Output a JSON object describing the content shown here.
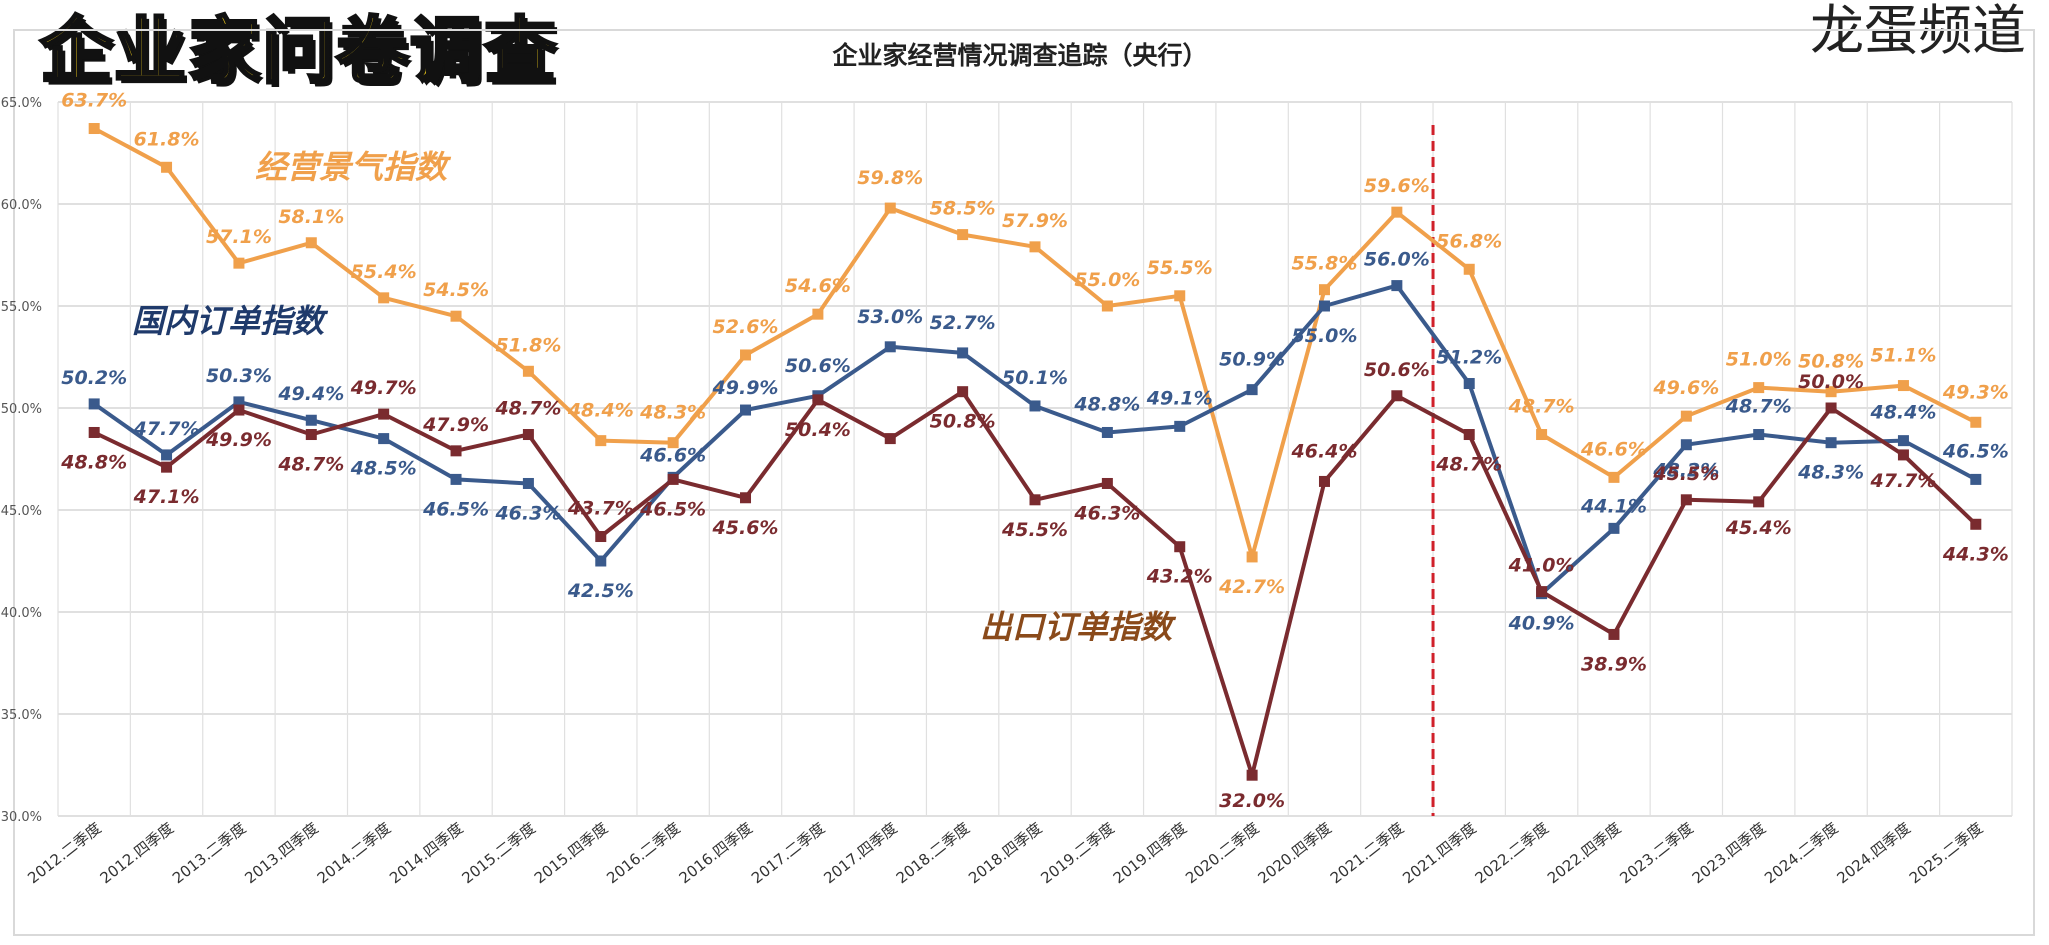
{
  "banner_title": "企业家问卷调查",
  "watermark_text": "龙蛋频道",
  "chart_data": {
    "type": "line",
    "title": "企业家经营情况调查追踪（央行）",
    "xlabel": "",
    "ylabel": "",
    "ylim": [
      30,
      65
    ],
    "yticks": [
      "30.0%",
      "35.0%",
      "40.0%",
      "45.0%",
      "50.0%",
      "55.0%",
      "60.0%",
      "65.0%"
    ],
    "grid": true,
    "categories": [
      "2012.二季度",
      "2012.四季度",
      "2013.二季度",
      "2013.四季度",
      "2014.二季度",
      "2014.四季度",
      "2015.二季度",
      "2015.四季度",
      "2016.二季度",
      "2016.四季度",
      "2017.二季度",
      "2017.四季度",
      "2018.二季度",
      "2018.四季度",
      "2019.二季度",
      "2019.四季度",
      "2020.二季度",
      "2020.四季度",
      "2021.二季度",
      "2021.四季度",
      "2022.二季度",
      "2022.四季度",
      "2023.二季度",
      "2023.四季度",
      "2024.二季度",
      "2024.四季度",
      "2025.二季度"
    ],
    "divider_after_category": "2021.二季度",
    "series": [
      {
        "name": "经营景气指数",
        "color": "#f0a04b",
        "values": [
          63.7,
          61.8,
          57.1,
          58.1,
          55.4,
          54.5,
          51.8,
          48.4,
          48.3,
          52.6,
          54.6,
          59.8,
          58.5,
          57.9,
          55.0,
          55.5,
          42.7,
          55.8,
          59.6,
          56.8,
          48.7,
          46.6,
          49.6,
          51.0,
          50.8,
          51.1,
          49.3
        ],
        "labels": [
          "63.7%",
          "61.8%",
          "57.1%",
          "58.1%",
          "55.4%",
          "54.5%",
          "51.8%",
          "48.4%",
          "48.3%",
          "52.6%",
          "54.6%",
          "59.8%",
          "58.5%",
          "57.9%",
          "55.0%",
          "55.5%",
          "42.7%",
          "55.8%",
          "59.6%",
          "56.8%",
          "48.7%",
          "46.6%",
          "49.6%",
          "51.0%",
          "50.8%",
          "51.1%",
          "49.3%"
        ]
      },
      {
        "name": "国内订单指数",
        "color": "#3a5a8c",
        "values": [
          50.2,
          47.7,
          50.3,
          49.4,
          48.5,
          46.5,
          46.3,
          42.5,
          46.6,
          49.9,
          50.6,
          53.0,
          52.7,
          50.1,
          48.8,
          49.1,
          50.9,
          55.0,
          56.0,
          51.2,
          40.9,
          44.1,
          48.2,
          48.7,
          48.3,
          48.4,
          46.5
        ],
        "labels": [
          "50.2%",
          "47.7%",
          "50.3%",
          "49.4%",
          "48.5%",
          "46.5%",
          "46.3%",
          "42.5%",
          "46.6%",
          "49.9%",
          "50.6%",
          "53.0%",
          "52.7%",
          "50.1%",
          "48.8%",
          "49.1%",
          "50.9%",
          "55.0%",
          "56.0%",
          "51.2%",
          "40.9%",
          "44.1%",
          "48.2%",
          "48.7%",
          "48.3%",
          "48.4%",
          "46.5%"
        ]
      },
      {
        "name": "出口订单指数",
        "color": "#7a2b2f",
        "values": [
          48.8,
          47.1,
          49.9,
          48.7,
          49.7,
          47.9,
          48.7,
          43.7,
          46.5,
          45.6,
          50.4,
          48.5,
          50.8,
          45.5,
          46.3,
          43.2,
          32.0,
          46.4,
          50.6,
          48.7,
          41.0,
          38.9,
          45.5,
          45.4,
          50.0,
          47.7,
          44.3
        ],
        "labels": [
          "48.8%",
          "47.1%",
          "49.9%",
          "48.7%",
          "49.7%",
          "47.9%",
          "48.7%",
          "43.7%",
          "46.5%",
          "45.6%",
          "50.4%",
          "",
          "50.8%",
          "45.5%",
          "46.3%",
          "43.2%",
          "32.0%",
          "46.4%",
          "50.6%",
          "48.7%",
          "41.0%",
          "38.9%",
          "45.5%",
          "45.4%",
          "50.0%",
          "47.7%",
          "44.3%"
        ]
      }
    ],
    "annotations": [
      {
        "text": "经营景气指数",
        "color": "#f0a04b"
      },
      {
        "text": "国内订单指数",
        "color": "#1f3a6b"
      },
      {
        "text": "出口订单指数",
        "color": "#8a4a1a"
      }
    ]
  }
}
